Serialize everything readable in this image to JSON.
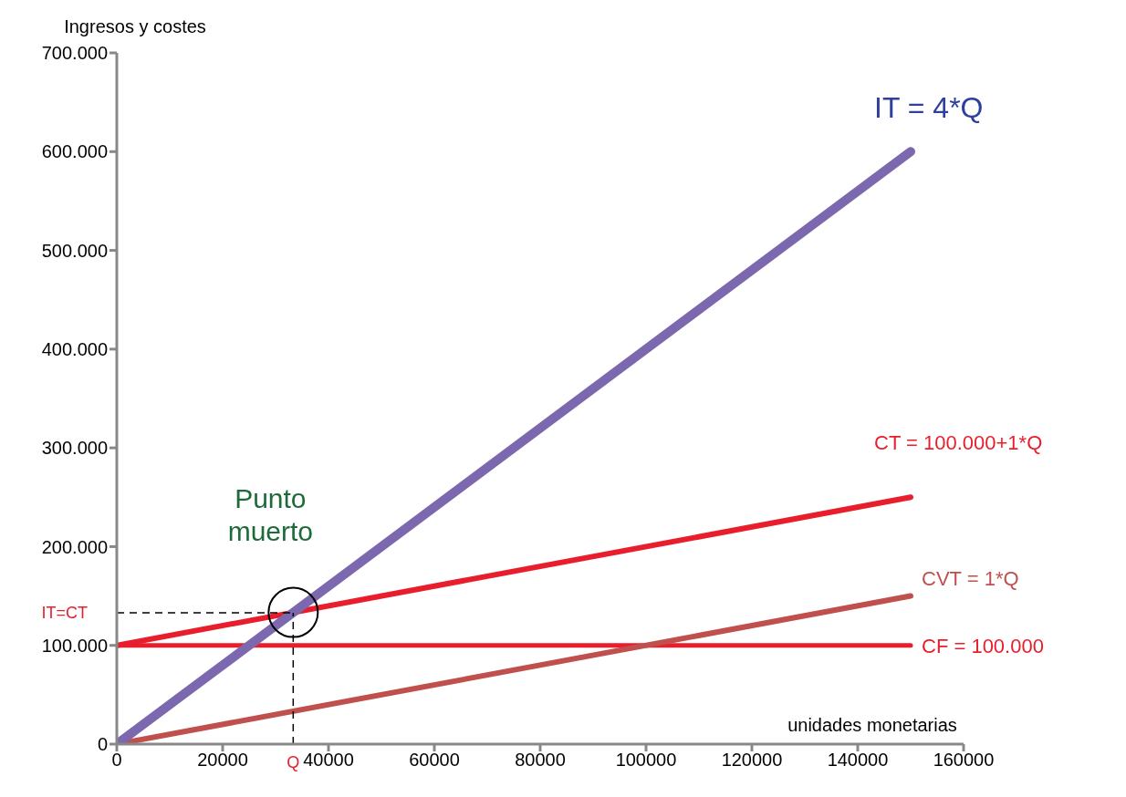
{
  "chart_data": {
    "type": "line",
    "ylabel": "Ingresos y costes",
    "xlabel": "unidades monetarias",
    "xlim": [
      0,
      160000
    ],
    "xticks": [
      0,
      20000,
      40000,
      60000,
      80000,
      100000,
      120000,
      140000,
      160000
    ],
    "ylim": [
      0,
      700000
    ],
    "yticks": [
      0,
      {
        "value": 100000,
        "label": "100.000"
      },
      {
        "value": 200000,
        "label": "200.000"
      },
      {
        "value": 300000,
        "label": "300.000"
      },
      {
        "value": 400000,
        "label": "400.000"
      },
      {
        "value": 500000,
        "label": "500.000"
      },
      {
        "value": 600000,
        "label": "600.000"
      },
      {
        "value": 700000,
        "label": "700.000"
      }
    ],
    "grid": false,
    "legend": false,
    "marker": "none",
    "series": [
      {
        "name": "CF = 100.000",
        "color": "#e81e2c",
        "x": [
          0,
          150000
        ],
        "values": [
          100000,
          100000
        ]
      },
      {
        "name": "CVT = 1*Q",
        "color": "#c0504d",
        "x": [
          0,
          150000
        ],
        "values": [
          0,
          150000
        ]
      },
      {
        "name": "CT = 100.000+1*Q",
        "color": "#e81e2c",
        "x": [
          0,
          150000
        ],
        "values": [
          100000,
          250000
        ]
      },
      {
        "name": "IT = 4*Q",
        "color": "#7b68ae",
        "x": [
          0,
          150000
        ],
        "values": [
          0,
          600000
        ]
      },
      {
        "color": "#000000",
        "line_style": "dashed",
        "x": [
          0,
          33333
        ],
        "values": [
          133000,
          133000
        ]
      },
      {
        "color": "#000000",
        "line_style": "dashed",
        "x": [
          33333,
          33333
        ],
        "values": [
          0,
          133000
        ]
      }
    ],
    "annotations": [
      {
        "text": "Punto muerto",
        "x": 33333,
        "y": 133333
      },
      "IT=CT",
      "Q"
    ]
  }
}
